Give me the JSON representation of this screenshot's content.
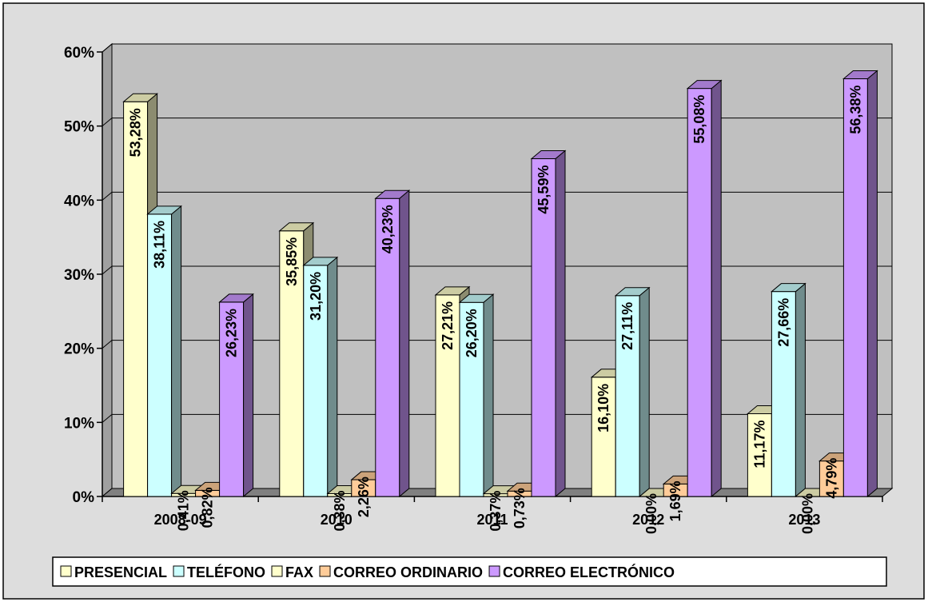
{
  "chart_data": {
    "type": "bar",
    "categories": [
      "2008-09",
      "2010",
      "2011",
      "2012",
      "2013"
    ],
    "ylim": [
      0,
      60
    ],
    "yticks": [
      0,
      10,
      20,
      30,
      40,
      50,
      60
    ],
    "ytick_labels": [
      "0%",
      "10%",
      "20%",
      "30%",
      "40%",
      "50%",
      "60%"
    ],
    "grid": true,
    "legend_position": "bottom",
    "series": [
      {
        "name": "PRESENCIAL",
        "values": [
          53.28,
          35.85,
          27.21,
          16.1,
          11.17
        ],
        "labels": [
          "53,28%",
          "35,85%",
          "27,21%",
          "16,10%",
          "11,17%"
        ],
        "color": "#FFFFCC"
      },
      {
        "name": "TELÉFONO",
        "values": [
          38.11,
          31.2,
          26.2,
          27.11,
          27.66
        ],
        "labels": [
          "38,11%",
          "31,20%",
          "26,20%",
          "27,11%",
          "27,66%"
        ],
        "color": "#CCFFFF"
      },
      {
        "name": "FAX",
        "values": [
          0.41,
          0.38,
          0.37,
          0.0,
          0.0
        ],
        "labels": [
          "0,41%",
          "0,38%",
          "0,37%",
          "0,00%",
          "0,00%"
        ],
        "color": "#FFFFCC"
      },
      {
        "name": "CORREO ORDINARIO",
        "values": [
          0.82,
          2.26,
          0.73,
          1.69,
          4.79
        ],
        "labels": [
          "0,82%",
          "2,26%",
          "0,73%",
          "1,69%",
          "4,79%"
        ],
        "color": "#FFCC99"
      },
      {
        "name": "CORREO ELECTRÓNICO",
        "values": [
          26.23,
          40.23,
          45.59,
          55.08,
          56.38
        ],
        "labels": [
          "26,23%",
          "40,23%",
          "45,59%",
          "55,08%",
          "56,38%"
        ],
        "color": "#CC99FF"
      }
    ]
  },
  "colors": {
    "background": "#DDDDDD",
    "plot_area": "#C0C0C0",
    "wall_side": "#A0A0A0",
    "floor": "#808080",
    "border": "#000000"
  }
}
